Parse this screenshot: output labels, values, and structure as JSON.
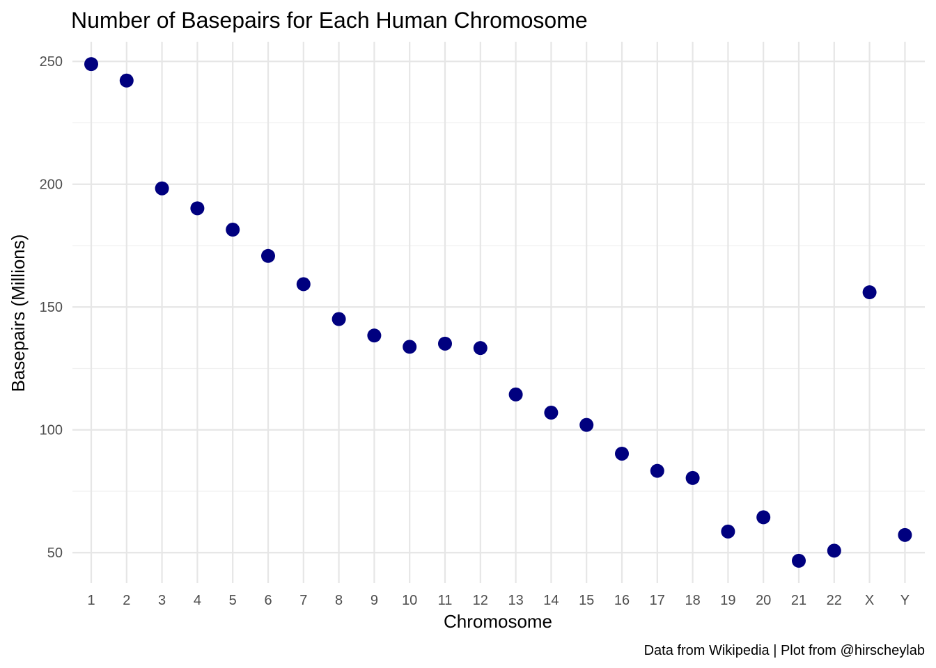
{
  "chart_data": {
    "type": "scatter",
    "title": "Number of Basepairs for Each Human Chromosome",
    "xlabel": "Chromosome",
    "ylabel": "Basepairs (Millions)",
    "caption": "Data from Wikipedia | Plot from @hirscheylab",
    "categories": [
      "1",
      "2",
      "3",
      "4",
      "5",
      "6",
      "7",
      "8",
      "9",
      "10",
      "11",
      "12",
      "13",
      "14",
      "15",
      "16",
      "17",
      "18",
      "19",
      "20",
      "21",
      "22",
      "X",
      "Y"
    ],
    "values": [
      248.9,
      242.2,
      198.3,
      190.2,
      181.5,
      170.8,
      159.3,
      145.1,
      138.4,
      133.8,
      135.1,
      133.3,
      114.4,
      107.0,
      102.0,
      90.3,
      83.3,
      80.4,
      58.6,
      64.4,
      46.7,
      50.8,
      156.0,
      57.2
    ],
    "y_ticks": [
      50,
      100,
      150,
      200,
      250
    ],
    "ylim": [
      37.6,
      258.0
    ],
    "grid": true,
    "point_color": "#00007f"
  }
}
